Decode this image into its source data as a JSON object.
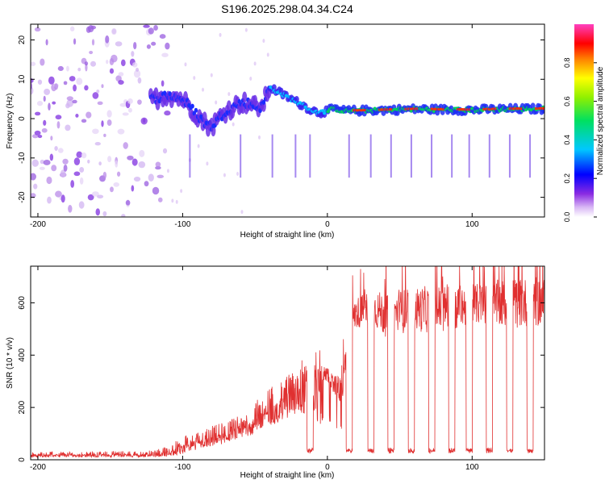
{
  "title": "S196.2025.298.04.34.C24",
  "chart_data": [
    {
      "type": "heatmap",
      "xlabel": "Height of straight line (km)",
      "ylabel": "Frequency (Hz)",
      "xlim": [
        -205,
        150
      ],
      "ylim": [
        -25,
        24
      ],
      "xticks": [
        -200,
        -100,
        0,
        100
      ],
      "yticks": [
        -20,
        -10,
        0,
        10,
        20
      ],
      "ridge": {
        "x": [
          -120,
          -110,
          -100,
          -95,
          -90,
          -85,
          -80,
          -75,
          -70,
          -65,
          -60,
          -55,
          -50,
          -45,
          -40,
          -35,
          -30,
          -25,
          -20,
          -15,
          -10,
          -5,
          0,
          5,
          10,
          20,
          40,
          60,
          80,
          100,
          120,
          150
        ],
        "freq": [
          5,
          6,
          5,
          3,
          1,
          -1,
          -2,
          0,
          2,
          3,
          4,
          4,
          3,
          3,
          8,
          7,
          6,
          5,
          4,
          3,
          2,
          1.5,
          2,
          2.5,
          2,
          2,
          2.2,
          2.4,
          2.3,
          2.2,
          2.4,
          2.5
        ]
      },
      "colorbar": {
        "label": "Normalized spectral amplitude",
        "range": [
          0,
          1
        ],
        "ticks": [
          "0.0",
          "0.2",
          "0.4",
          "0.6",
          "0.8"
        ]
      }
    },
    {
      "type": "line",
      "xlabel": "Height of straight line (km)",
      "ylabel": "SNR (10 * v/v)",
      "xlim": [
        -205,
        150
      ],
      "ylim": [
        0,
        740
      ],
      "xticks": [
        -200,
        -100,
        0,
        100
      ],
      "yticks": [
        0,
        200,
        400,
        600
      ],
      "color": "#e03030",
      "envelope": {
        "x": [
          -205,
          -120,
          -110,
          -100,
          -90,
          -80,
          -70,
          -60,
          -50,
          -40,
          -30,
          -20,
          -10,
          0,
          10,
          15,
          20,
          30,
          40,
          60,
          80,
          100,
          120,
          150
        ],
        "high": [
          30,
          35,
          55,
          90,
          110,
          130,
          150,
          170,
          220,
          280,
          320,
          350,
          380,
          350,
          310,
          560,
          620,
          650,
          640,
          660,
          670,
          670,
          690,
          700
        ],
        "low": [
          10,
          10,
          12,
          20,
          40,
          50,
          60,
          80,
          100,
          130,
          150,
          170,
          170,
          300,
          200,
          460,
          500,
          520,
          470,
          490,
          480,
          520,
          500,
          510
        ]
      },
      "dropouts_x": [
        -12,
        15,
        30,
        44,
        58,
        72,
        86,
        98,
        112,
        126,
        140
      ],
      "dropout_level": 25
    }
  ]
}
